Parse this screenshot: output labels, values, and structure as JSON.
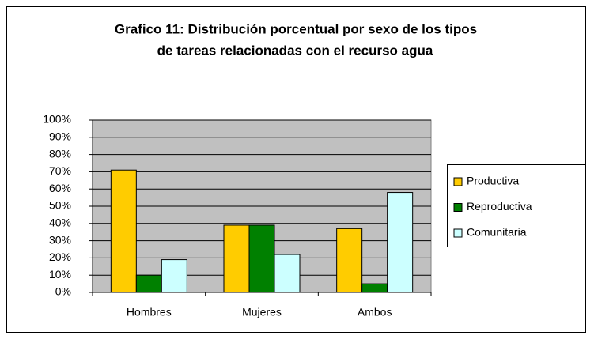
{
  "chart_data": {
    "type": "bar",
    "title": [
      "Grafico 11: Distribución porcentual por sexo de los tipos",
      "de tareas relacionadas con el recurso agua"
    ],
    "categories": [
      "Hombres",
      "Mujeres",
      "Ambos"
    ],
    "series": [
      {
        "name": "Productiva",
        "color": "#ffcc00",
        "values": [
          71,
          39,
          37
        ]
      },
      {
        "name": "Reproductiva",
        "color": "#008000",
        "values": [
          10,
          39,
          5
        ]
      },
      {
        "name": "Comunitaria",
        "color": "#ccffff",
        "values": [
          19,
          22,
          58
        ]
      }
    ],
    "ylim": [
      0,
      100
    ],
    "yticks": [
      {
        "value": 0,
        "label": "0%"
      },
      {
        "value": 10,
        "label": "10%"
      },
      {
        "value": 20,
        "label": "20%"
      },
      {
        "value": 30,
        "label": "30%"
      },
      {
        "value": 40,
        "label": "40%"
      },
      {
        "value": 50,
        "label": "50%"
      },
      {
        "value": 60,
        "label": "60%"
      },
      {
        "value": 70,
        "label": "70%"
      },
      {
        "value": 80,
        "label": "80%"
      },
      {
        "value": 90,
        "label": "90%"
      },
      {
        "value": 100,
        "label": "100%"
      }
    ],
    "grid": true,
    "legend": "right",
    "plot_background": "#c0c0c0"
  }
}
